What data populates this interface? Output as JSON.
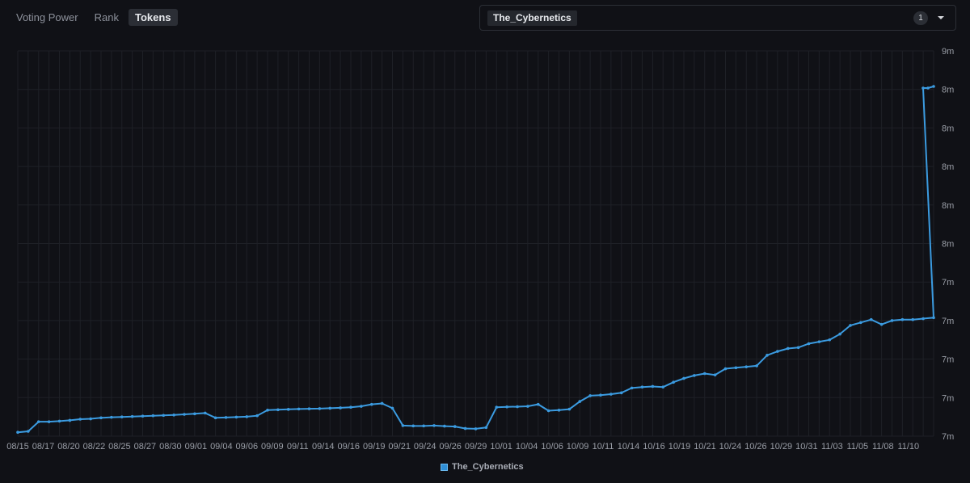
{
  "tabs": [
    {
      "label": "Voting Power",
      "active": false
    },
    {
      "label": "Rank",
      "active": false
    },
    {
      "label": "Tokens",
      "active": true
    }
  ],
  "selector": {
    "selected": "The_Cybernetics",
    "count": "1",
    "dropdown_icon": "caret-down-icon"
  },
  "colors": {
    "line": "#3b9be0",
    "grid": "#1e2026",
    "background": "#101116"
  },
  "chart_data": {
    "type": "line",
    "grid": true,
    "legend_position": "bottom-center",
    "y_tick_labels": [
      "7m",
      "7m",
      "7m",
      "7m",
      "7m",
      "8m",
      "8m",
      "8m",
      "8m",
      "8m",
      "9m"
    ],
    "x_tick_labels": [
      "08/15",
      "08/17",
      "08/20",
      "08/22",
      "08/25",
      "08/27",
      "08/30",
      "09/01",
      "09/04",
      "09/06",
      "09/09",
      "09/11",
      "09/14",
      "09/16",
      "09/19",
      "09/21",
      "09/24",
      "09/26",
      "09/29",
      "10/01",
      "10/04",
      "10/06",
      "10/09",
      "10/11",
      "10/14",
      "10/16",
      "10/19",
      "10/21",
      "10/24",
      "10/26",
      "10/29",
      "10/31",
      "11/03",
      "11/05",
      "11/08",
      "11/10"
    ],
    "ylim": [
      7.0,
      9.0
    ],
    "series": [
      {
        "name": "The_Cybernetics",
        "x": [
          0,
          1,
          2,
          3,
          4,
          5,
          6,
          7,
          8,
          9,
          10,
          11,
          12,
          13,
          14,
          15,
          16,
          17,
          18,
          19,
          20,
          21,
          22,
          23,
          24,
          25,
          26,
          27,
          28,
          29,
          30,
          31,
          32,
          33,
          34,
          35,
          36,
          37,
          38,
          39,
          40,
          41,
          42,
          43,
          44,
          45,
          46,
          47,
          48,
          49,
          50,
          51,
          52,
          53,
          54,
          55,
          56,
          57,
          58,
          59,
          60,
          61,
          62,
          63,
          64,
          65,
          66,
          67,
          68,
          69,
          70,
          71,
          72,
          73,
          74,
          75,
          76,
          77,
          78,
          79,
          80,
          81,
          82,
          83,
          84,
          85,
          86,
          87,
          88
        ],
        "values": [
          7.02,
          7.025,
          7.075,
          7.075,
          7.078,
          7.082,
          7.088,
          7.09,
          7.095,
          7.098,
          7.1,
          7.102,
          7.104,
          7.106,
          7.108,
          7.11,
          7.113,
          7.116,
          7.12,
          7.095,
          7.097,
          7.099,
          7.101,
          7.106,
          7.135,
          7.137,
          7.139,
          7.141,
          7.142,
          7.143,
          7.145,
          7.147,
          7.15,
          7.155,
          7.165,
          7.17,
          7.145,
          7.055,
          7.053,
          7.053,
          7.055,
          7.052,
          7.05,
          7.04,
          7.038,
          7.045,
          7.15,
          7.152,
          7.153,
          7.155,
          7.165,
          7.132,
          7.135,
          7.14,
          7.18,
          7.21,
          7.213,
          7.218,
          7.225,
          7.25,
          7.255,
          7.258,
          7.255,
          7.28,
          7.3,
          7.315,
          7.325,
          7.318,
          7.35,
          7.355,
          7.36,
          7.365,
          7.42,
          7.44,
          7.455,
          7.46,
          7.48,
          7.49,
          7.5,
          7.53,
          7.575,
          7.59,
          7.605,
          7.58,
          7.6,
          7.605,
          7.605,
          7.61,
          7.615
        ]
      }
    ]
  }
}
